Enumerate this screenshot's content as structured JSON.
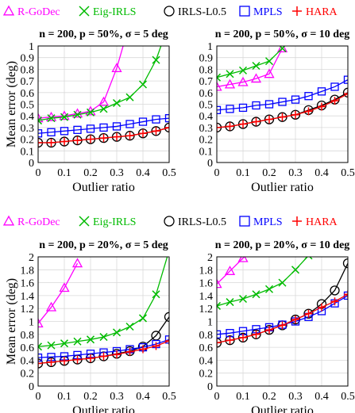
{
  "colors": {
    "R-GoDec": "#ff00ff",
    "Eig-IRLS": "#00bb00",
    "IRLS-L0.5": "#000000",
    "MPLS": "#0000ff",
    "HARA": "#ff0000"
  },
  "chart_data": [
    {
      "type": "line",
      "title": "n = 200, p = 50%, σ = 5 deg",
      "xlabel": "Outlier ratio",
      "ylabel": "Mean error (deg)",
      "xlim": [
        0,
        0.5
      ],
      "ylim": [
        0,
        1
      ],
      "x": [
        0,
        0.05,
        0.1,
        0.15,
        0.2,
        0.25,
        0.3,
        0.35,
        0.4,
        0.45,
        0.5
      ],
      "xticks": [
        "0",
        "0.1",
        "0.2",
        "0.3",
        "0.4",
        "0.5"
      ],
      "yticks": [
        "0",
        "0.1",
        "0.2",
        "0.3",
        "0.4",
        "0.5",
        "0.6",
        "0.7",
        "0.8",
        "0.9",
        "1"
      ],
      "legend": [
        "R-GoDec",
        "Eig-IRLS",
        "IRLS-L0.5",
        "MPLS",
        "HARA"
      ],
      "grid": true,
      "series": [
        {
          "name": "R-GoDec",
          "values": [
            0.38,
            0.39,
            0.4,
            0.42,
            0.44,
            0.52,
            0.81,
            1.2,
            null,
            null,
            null
          ]
        },
        {
          "name": "Eig-IRLS",
          "values": [
            0.36,
            0.38,
            0.39,
            0.41,
            0.43,
            0.46,
            0.51,
            0.56,
            0.67,
            0.88,
            1.2
          ]
        },
        {
          "name": "IRLS-L0.5",
          "values": [
            0.17,
            0.17,
            0.18,
            0.19,
            0.2,
            0.21,
            0.22,
            0.23,
            0.25,
            0.27,
            0.3
          ]
        },
        {
          "name": "MPLS",
          "values": [
            0.25,
            0.26,
            0.27,
            0.28,
            0.29,
            0.3,
            0.31,
            0.33,
            0.35,
            0.37,
            0.38
          ]
        },
        {
          "name": "HARA",
          "values": [
            0.17,
            0.17,
            0.18,
            0.19,
            0.2,
            0.21,
            0.22,
            0.23,
            0.25,
            0.27,
            0.3
          ]
        }
      ]
    },
    {
      "type": "line",
      "title": "n = 200, p = 50%, σ = 10 deg",
      "xlabel": "Outlier ratio",
      "ylabel": "",
      "xlim": [
        0,
        0.5
      ],
      "ylim": [
        0,
        1
      ],
      "x": [
        0,
        0.05,
        0.1,
        0.15,
        0.2,
        0.25,
        0.3,
        0.35,
        0.4,
        0.45,
        0.5
      ],
      "xticks": [
        "0",
        "0.1",
        "0.2",
        "0.3",
        "0.4",
        "0.5"
      ],
      "yticks": [
        "0",
        "0.1",
        "0.2",
        "0.3",
        "0.4",
        "0.5",
        "0.6",
        "0.7",
        "0.8",
        "0.9",
        "1"
      ],
      "grid": true,
      "series": [
        {
          "name": "R-GoDec",
          "values": [
            0.65,
            0.67,
            0.69,
            0.72,
            0.76,
            0.98,
            null,
            null,
            null,
            null,
            null
          ]
        },
        {
          "name": "Eig-IRLS",
          "values": [
            0.73,
            0.76,
            0.79,
            0.83,
            0.87,
            0.98,
            null,
            null,
            null,
            null,
            null
          ]
        },
        {
          "name": "IRLS-L0.5",
          "values": [
            0.3,
            0.31,
            0.33,
            0.35,
            0.37,
            0.39,
            0.41,
            0.45,
            0.49,
            0.54,
            0.6
          ]
        },
        {
          "name": "MPLS",
          "values": [
            0.45,
            0.46,
            0.47,
            0.49,
            0.5,
            0.52,
            0.54,
            0.57,
            0.61,
            0.65,
            0.71
          ]
        },
        {
          "name": "HARA",
          "values": [
            0.3,
            0.31,
            0.33,
            0.35,
            0.37,
            0.39,
            0.41,
            0.44,
            0.48,
            0.53,
            0.59
          ]
        }
      ]
    },
    {
      "type": "line",
      "title": "n = 200, p = 20%, σ = 5 deg",
      "xlabel": "Outlier ratio",
      "ylabel": "Mean error (deg)",
      "xlim": [
        0,
        0.5
      ],
      "ylim": [
        0,
        2
      ],
      "x": [
        0,
        0.05,
        0.1,
        0.15,
        0.2,
        0.25,
        0.3,
        0.35,
        0.4,
        0.45,
        0.5
      ],
      "xticks": [
        "0",
        "0.1",
        "0.2",
        "0.3",
        "0.4",
        "0.5"
      ],
      "yticks": [
        "0",
        "0.2",
        "0.4",
        "0.6",
        "0.8",
        "1",
        "1.2",
        "1.4",
        "1.6",
        "1.8",
        "2"
      ],
      "legend": [
        "R-GoDec",
        "Eig-IRLS",
        "IRLS-L0.5",
        "MPLS",
        "HARA"
      ],
      "grid": true,
      "series": [
        {
          "name": "R-GoDec",
          "values": [
            0.97,
            1.22,
            1.52,
            1.9,
            null,
            null,
            null,
            null,
            null,
            null,
            null
          ]
        },
        {
          "name": "Eig-IRLS",
          "values": [
            0.61,
            0.63,
            0.66,
            0.69,
            0.72,
            0.76,
            0.83,
            0.92,
            1.05,
            1.42,
            2.1
          ]
        },
        {
          "name": "IRLS-L0.5",
          "values": [
            0.35,
            0.37,
            0.39,
            0.41,
            0.43,
            0.46,
            0.5,
            0.54,
            0.61,
            0.78,
            1.07
          ]
        },
        {
          "name": "MPLS",
          "values": [
            0.44,
            0.45,
            0.46,
            0.48,
            0.5,
            0.52,
            0.54,
            0.57,
            0.6,
            0.65,
            0.72
          ]
        },
        {
          "name": "HARA",
          "values": [
            0.35,
            0.37,
            0.39,
            0.41,
            0.43,
            0.46,
            0.49,
            0.53,
            0.57,
            0.62,
            0.7
          ]
        }
      ]
    },
    {
      "type": "line",
      "title": "n = 200, p = 20%, σ = 10 deg",
      "xlabel": "Outlier ratio",
      "ylabel": "",
      "xlim": [
        0,
        0.5
      ],
      "ylim": [
        0,
        2
      ],
      "x": [
        0,
        0.05,
        0.1,
        0.15,
        0.2,
        0.25,
        0.3,
        0.35,
        0.4,
        0.45,
        0.5
      ],
      "xticks": [
        "0",
        "0.1",
        "0.2",
        "0.3",
        "0.4",
        "0.5"
      ],
      "yticks": [
        "0",
        "0.2",
        "0.4",
        "0.6",
        "0.8",
        "1",
        "1.2",
        "1.4",
        "1.6",
        "1.8",
        "2"
      ],
      "grid": true,
      "series": [
        {
          "name": "R-GoDec",
          "values": [
            1.58,
            1.78,
            1.98,
            2.2,
            null,
            null,
            null,
            null,
            null,
            null,
            null
          ]
        },
        {
          "name": "Eig-IRLS",
          "values": [
            1.24,
            1.3,
            1.35,
            1.42,
            1.5,
            1.6,
            1.8,
            2.02,
            null,
            null,
            null
          ]
        },
        {
          "name": "IRLS-L0.5",
          "values": [
            0.67,
            0.71,
            0.75,
            0.8,
            0.87,
            0.94,
            1.03,
            1.12,
            1.27,
            1.48,
            1.9
          ]
        },
        {
          "name": "MPLS",
          "values": [
            0.8,
            0.82,
            0.85,
            0.88,
            0.91,
            0.95,
            1.0,
            1.07,
            1.16,
            1.28,
            1.4
          ]
        },
        {
          "name": "HARA",
          "values": [
            0.67,
            0.71,
            0.75,
            0.8,
            0.87,
            0.94,
            1.03,
            1.12,
            1.22,
            1.31,
            1.42
          ]
        }
      ]
    }
  ]
}
